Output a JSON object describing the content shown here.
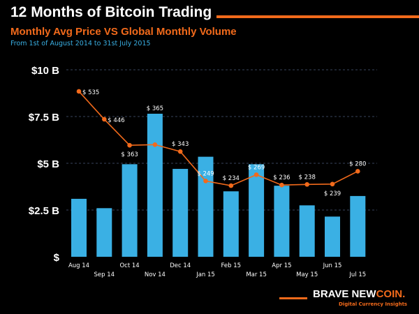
{
  "header": {
    "title": "12 Months of Bitcoin Trading",
    "subtitle": "Monthly Avg Price VS Global Monthly Volume",
    "period": "From 1st of August 2014 to 31st July 2015"
  },
  "brand": {
    "name_part1": "BRAVE NEW",
    "name_part2": "COIN.",
    "tagline": "Digital Currency Insights"
  },
  "colors": {
    "bars": "#3ab0e4",
    "line": "#f26a1b",
    "background": "#000000",
    "grid": "#4a5a7a"
  },
  "chart_data": {
    "type": "bar+line",
    "categories": [
      "Aug 14",
      "Sep 14",
      "Oct 14",
      "Nov 14",
      "Dec 14",
      "Jan 15",
      "Feb 15",
      "Mar 15",
      "Apr 15",
      "May 15",
      "Jun 15",
      "Jul 15"
    ],
    "series": [
      {
        "type": "bar",
        "axis": "left",
        "values": [
          3.1,
          2.6,
          4.95,
          7.65,
          4.7,
          5.35,
          3.5,
          4.95,
          3.8,
          2.75,
          2.15,
          3.25
        ]
      },
      {
        "type": "line",
        "axis": "right-hidden",
        "values": [
          535,
          446,
          363,
          365,
          343,
          249,
          234,
          269,
          236,
          238,
          239,
          280
        ],
        "labels": [
          "$ 535",
          "$ 446",
          "$ 363",
          "$ 365",
          "$ 343",
          "$ 249",
          "$ 234",
          "$ 269",
          "$ 236",
          "$ 238",
          "$ 239",
          "$ 280"
        ]
      }
    ],
    "yaxis": {
      "ticks": [
        0,
        2.5,
        5,
        7.5,
        10
      ],
      "tick_labels": [
        "$",
        "$2.5 B",
        "$5 B",
        "$7.5 B",
        "$10 B"
      ],
      "ylim": [
        0,
        10
      ]
    },
    "grid": "dashed horizontal",
    "legend": "none"
  }
}
